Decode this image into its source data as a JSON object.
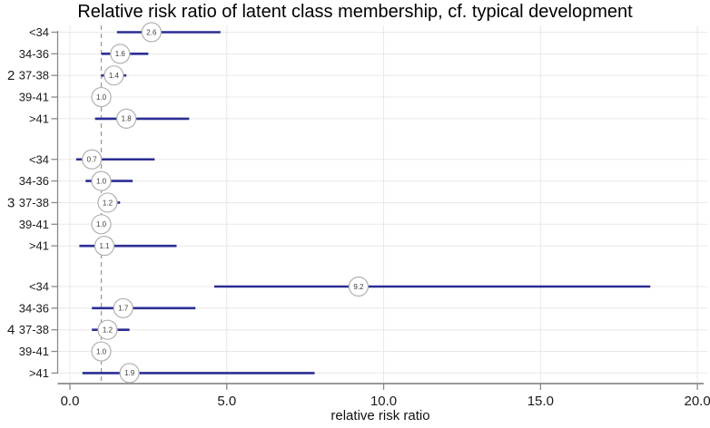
{
  "chart_data": {
    "type": "scatter",
    "subtype": "forest-plot",
    "title": "Relative risk ratio of latent class membership, cf. typical development",
    "xlabel": "relative risk ratio",
    "ylabel": "",
    "xlim": [
      0,
      20
    ],
    "x_ticks": [
      0,
      5,
      10,
      15,
      20
    ],
    "x_tick_labels": [
      "0.0",
      "5.0",
      "10.0",
      "15.0",
      "20.0"
    ],
    "reference_line": 1.0,
    "grid": "on",
    "legend": "none",
    "groups": [
      {
        "label": "2",
        "rows": [
          {
            "category": "<34",
            "rrr": 2.6,
            "ci_low": 1.5,
            "ci_high": 4.8,
            "reference": false
          },
          {
            "category": "34-36",
            "rrr": 1.6,
            "ci_low": 1.0,
            "ci_high": 2.5,
            "reference": false
          },
          {
            "category": "37-38",
            "rrr": 1.4,
            "ci_low": 1.0,
            "ci_high": 1.8,
            "reference": false
          },
          {
            "category": "39-41",
            "rrr": 1.0,
            "ci_low": null,
            "ci_high": null,
            "reference": true
          },
          {
            "category": ">41",
            "rrr": 1.8,
            "ci_low": 0.8,
            "ci_high": 3.8,
            "reference": false
          }
        ]
      },
      {
        "label": "3",
        "rows": [
          {
            "category": "<34",
            "rrr": 0.7,
            "ci_low": 0.2,
            "ci_high": 2.7,
            "reference": false
          },
          {
            "category": "34-36",
            "rrr": 1.0,
            "ci_low": 0.5,
            "ci_high": 2.0,
            "reference": false
          },
          {
            "category": "37-38",
            "rrr": 1.2,
            "ci_low": 0.9,
            "ci_high": 1.6,
            "reference": false
          },
          {
            "category": "39-41",
            "rrr": 1.0,
            "ci_low": null,
            "ci_high": null,
            "reference": true
          },
          {
            "category": ">41",
            "rrr": 1.1,
            "ci_low": 0.3,
            "ci_high": 3.4,
            "reference": false
          }
        ]
      },
      {
        "label": "4",
        "rows": [
          {
            "category": "<34",
            "rrr": 9.2,
            "ci_low": 4.6,
            "ci_high": 18.5,
            "reference": false
          },
          {
            "category": "34-36",
            "rrr": 1.7,
            "ci_low": 0.7,
            "ci_high": 4.0,
            "reference": false
          },
          {
            "category": "37-38",
            "rrr": 1.2,
            "ci_low": 0.7,
            "ci_high": 1.9,
            "reference": false
          },
          {
            "category": "39-41",
            "rrr": 1.0,
            "ci_low": null,
            "ci_high": null,
            "reference": true
          },
          {
            "category": ">41",
            "rrr": 1.9,
            "ci_low": 0.4,
            "ci_high": 7.8,
            "reference": false
          }
        ]
      }
    ],
    "colors": {
      "ci_line": "#2b2d94",
      "circle_fill": "#ffffff",
      "circle_stroke": "#b0b0b0",
      "grid": "#e8e8e8",
      "axis": "#8a8a8a",
      "reference": "#9a9a9a",
      "text": "#1a1a1a",
      "value_text": "#3c3c3c"
    }
  }
}
